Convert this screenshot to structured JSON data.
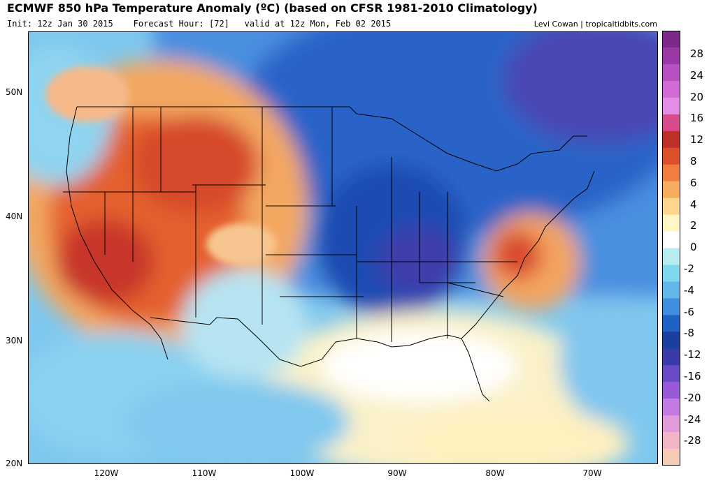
{
  "header": {
    "title": "ECMWF 850 hPa Temperature Anomaly (ºC) (based on CFSR 1981-2010 Climatology)",
    "init": "Init: 12z Jan 30 2015",
    "forecast_hour": "Forecast Hour: [72]",
    "valid": "valid at 12z Mon, Feb 02 2015",
    "credit": "Levi Cowan | tropicaltidbits.com"
  },
  "axes": {
    "lat_labels": [
      "50N",
      "40N",
      "30N",
      "20N"
    ],
    "lon_labels": [
      "120W",
      "110W",
      "100W",
      "90W",
      "80W",
      "70W"
    ]
  },
  "colorbar": {
    "labels": [
      "28",
      "24",
      "20",
      "16",
      "12",
      "8",
      "6",
      "4",
      "2",
      "0",
      "-2",
      "-4",
      "-6",
      "-8",
      "-12",
      "-16",
      "-20",
      "-24",
      "-28"
    ],
    "colors": [
      "#7b2a8c",
      "#9a38a8",
      "#b94fc4",
      "#d46ad8",
      "#e38de6",
      "#d94c8c",
      "#c0302a",
      "#de4f2b",
      "#f07f3f",
      "#f7ad5e",
      "#fcd68c",
      "#fff6c4",
      "#ffffff",
      "#b6ecf2",
      "#80d8ef",
      "#64b7ea",
      "#3f8ee0",
      "#1e62c4",
      "#1a3f9e",
      "#3a3aa8",
      "#6a4bc6",
      "#9a5ad8",
      "#c47ae2",
      "#e39ad8",
      "#f2b6c6",
      "#f8cab8"
    ]
  },
  "map_colors": {
    "ocean_warm": "#f6e7b0",
    "cold_core": "#1e4fb4",
    "deep_cold": "#3b3aa8",
    "warm_core": "#d9472a",
    "hot_core": "#b8292a"
  }
}
